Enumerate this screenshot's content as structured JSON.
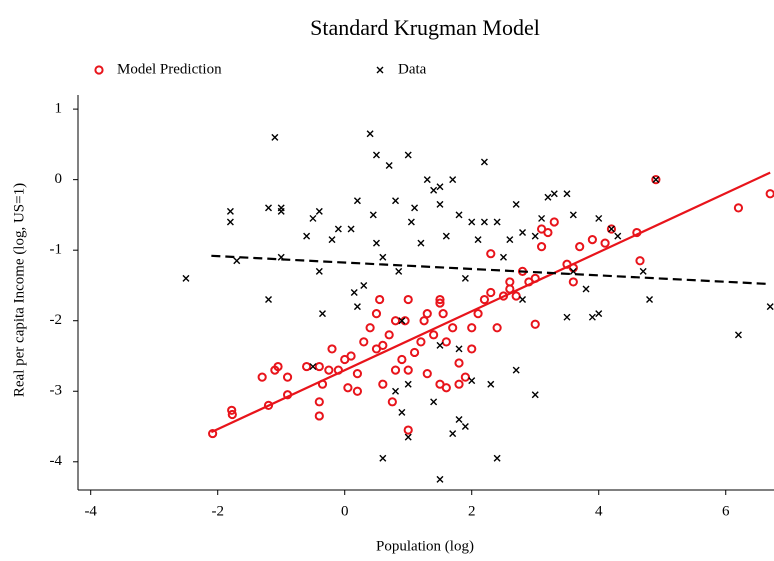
{
  "chart_data": {
    "type": "scatter",
    "title": "Standard Krugman Model",
    "xlabel": "Population (log)",
    "ylabel": "Real per capita Income (log, US=1)",
    "xlim": [
      -4.2,
      6.76
    ],
    "ylim": [
      -4.4,
      1.2
    ],
    "xticks": [
      -4,
      -2,
      0,
      2,
      4,
      6
    ],
    "yticks": [
      -4,
      -3,
      -2,
      -1,
      0,
      1
    ],
    "series": [
      {
        "name": "Model Prediction",
        "color": "#e8141b",
        "marker": "circle",
        "x": [
          -2.08,
          -1.78,
          -1.77,
          -1.2,
          -1.1,
          -1.05,
          -1.3,
          -0.9,
          -0.9,
          -0.6,
          -0.4,
          -0.35,
          -0.4,
          -0.4,
          -0.25,
          0,
          0.1,
          0.2,
          0.05,
          -0.1,
          -0.2,
          0.3,
          0.4,
          0.5,
          0.55,
          0.5,
          0.6,
          0.7,
          0.8,
          0.9,
          1.0,
          1.0,
          0.95,
          1.1,
          1.2,
          1.25,
          1.3,
          1.4,
          1.5,
          1.5,
          1.55,
          1.6,
          1.7,
          1.8,
          1.9,
          2.0,
          2.0,
          2.1,
          2.2,
          2.3,
          2.4,
          2.5,
          2.6,
          2.7,
          2.8,
          2.9,
          3.0,
          3.0,
          3.1,
          3.2,
          3.3,
          3.5,
          3.7,
          3.9,
          3.6,
          4.2,
          4.1,
          4.6,
          4.65,
          4.9,
          6.2,
          6.7,
          3.6,
          0.8,
          0.75,
          0.2,
          1.3,
          1.5,
          1.6,
          1.8,
          1.0,
          2.3,
          2.6,
          3.1,
          0.6
        ],
        "y": [
          -3.6,
          -3.27,
          -3.33,
          -3.2,
          -2.7,
          -2.65,
          -2.8,
          -3.05,
          -2.8,
          -2.65,
          -2.65,
          -2.9,
          -3.15,
          -3.35,
          -2.7,
          -2.55,
          -2.5,
          -2.75,
          -2.95,
          -2.7,
          -2.4,
          -2.3,
          -2.1,
          -1.9,
          -1.7,
          -2.4,
          -2.35,
          -2.2,
          -2.0,
          -2.55,
          -2.7,
          -1.7,
          -2.0,
          -2.45,
          -2.3,
          -2.0,
          -1.9,
          -2.2,
          -1.75,
          -1.7,
          -1.9,
          -2.3,
          -2.1,
          -2.6,
          -2.8,
          -2.4,
          -2.1,
          -1.9,
          -1.7,
          -1.6,
          -2.1,
          -1.65,
          -1.45,
          -1.65,
          -1.3,
          -1.45,
          -2.05,
          -1.4,
          -0.95,
          -0.75,
          -0.6,
          -1.2,
          -0.95,
          -0.85,
          -1.25,
          -0.7,
          -0.9,
          -0.75,
          -1.15,
          0.0,
          -0.4,
          -0.2,
          -1.45,
          -2.7,
          -3.15,
          -3.0,
          -2.75,
          -2.9,
          -2.95,
          -2.9,
          -3.55,
          -1.05,
          -1.55,
          -0.7,
          -2.9
        ]
      },
      {
        "name": "Data",
        "color": "#000000",
        "marker": "x",
        "x": [
          -2.5,
          -1.8,
          -1.8,
          -1.7,
          -1.2,
          -1.1,
          -1.0,
          -1.0,
          -1.2,
          -1.0,
          -0.6,
          -0.5,
          -0.4,
          -0.4,
          -0.35,
          -0.2,
          -0.1,
          0.1,
          0.2,
          0.15,
          0.3,
          0.4,
          0.45,
          0.5,
          0.5,
          0.6,
          0.7,
          0.8,
          0.85,
          0.9,
          1.0,
          1.05,
          1.1,
          1.2,
          1.3,
          1.4,
          1.5,
          1.5,
          1.6,
          1.7,
          1.8,
          1.9,
          2.0,
          2.1,
          2.2,
          2.2,
          2.4,
          2.5,
          2.6,
          2.7,
          2.8,
          3.0,
          3.1,
          3.2,
          3.3,
          3.5,
          3.6,
          3.6,
          3.8,
          4.0,
          4.2,
          4.3,
          4.7,
          4.8,
          6.2,
          6.7,
          0.6,
          0.9,
          1.0,
          1.5,
          1.7,
          1.9,
          1.8,
          2.4,
          2.0,
          2.3,
          2.7,
          3.0,
          1.4,
          1.0,
          0.8,
          1.5,
          3.5,
          3.9,
          4.0,
          0.2,
          -0.5,
          1.8,
          4.9,
          2.8
        ],
        "y": [
          -1.4,
          -0.45,
          -0.6,
          -1.15,
          -0.4,
          0.6,
          -0.4,
          -0.45,
          -1.7,
          -1.1,
          -0.8,
          -0.55,
          -0.45,
          -1.3,
          -1.9,
          -0.85,
          -0.7,
          -0.7,
          -0.3,
          -1.6,
          -1.5,
          0.65,
          -0.5,
          0.35,
          -0.9,
          -1.1,
          0.2,
          -0.3,
          -1.3,
          -2.0,
          0.35,
          -0.6,
          -0.4,
          -0.9,
          0.0,
          -0.15,
          -0.1,
          -0.35,
          -0.8,
          0.0,
          -0.5,
          -1.4,
          -0.6,
          -0.85,
          0.25,
          -0.6,
          -0.6,
          -1.1,
          -0.85,
          -0.35,
          -0.75,
          -0.8,
          -0.55,
          -0.25,
          -0.2,
          -0.2,
          -0.5,
          -1.3,
          -1.55,
          -0.55,
          -0.7,
          -0.8,
          -1.3,
          -1.7,
          -2.2,
          -1.8,
          -3.95,
          -3.3,
          -3.65,
          -4.25,
          -3.6,
          -3.5,
          -3.4,
          -3.95,
          -2.85,
          -2.9,
          -2.7,
          -3.05,
          -3.15,
          -2.9,
          -3.0,
          -2.35,
          -1.95,
          -1.95,
          -1.9,
          -1.8,
          -2.65,
          -2.4,
          0.0,
          -1.7
        ]
      }
    ],
    "lines": [
      {
        "color": "#e8141b",
        "dash": false,
        "x": [
          -2.1,
          6.7
        ],
        "y": [
          -3.58,
          0.1
        ]
      },
      {
        "color": "#000000",
        "dash": true,
        "x": [
          -2.1,
          6.7
        ],
        "y": [
          -1.08,
          -1.48
        ]
      }
    ]
  }
}
